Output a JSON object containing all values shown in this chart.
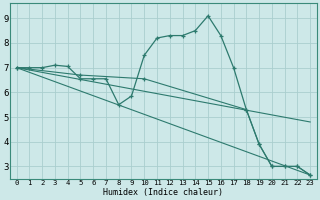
{
  "xlabel": "Humidex (Indice chaleur)",
  "bg_color": "#cde8e8",
  "grid_color": "#aacece",
  "line_color": "#2d7a6e",
  "xlim": [
    -0.5,
    23.5
  ],
  "ylim": [
    2.5,
    9.6
  ],
  "xticks": [
    0,
    1,
    2,
    3,
    4,
    5,
    6,
    7,
    8,
    9,
    10,
    11,
    12,
    13,
    14,
    15,
    16,
    17,
    18,
    19,
    20,
    21,
    22,
    23
  ],
  "yticks": [
    3,
    4,
    5,
    6,
    7,
    8,
    9
  ],
  "lines": [
    {
      "x": [
        0,
        1,
        2,
        3,
        4,
        5,
        6,
        7,
        8,
        9,
        10,
        11,
        12,
        13,
        14,
        15,
        16,
        17,
        18,
        19,
        20,
        21,
        22,
        23
      ],
      "y": [
        7.0,
        7.0,
        7.0,
        7.1,
        7.05,
        6.55,
        6.55,
        6.55,
        5.5,
        5.85,
        7.5,
        8.2,
        8.3,
        8.3,
        8.5,
        9.1,
        8.3,
        7.0,
        5.3,
        3.9,
        3.0,
        3.0,
        3.0,
        2.65
      ],
      "marker": true
    },
    {
      "x": [
        0,
        23
      ],
      "y": [
        7.0,
        2.65
      ],
      "marker": false
    },
    {
      "x": [
        0,
        23
      ],
      "y": [
        7.0,
        4.8
      ],
      "marker": false
    },
    {
      "x": [
        0,
        5,
        10,
        18,
        19,
        20,
        21,
        22,
        23
      ],
      "y": [
        7.0,
        6.7,
        6.55,
        5.3,
        3.9,
        3.0,
        3.0,
        3.0,
        2.65
      ],
      "marker": true
    }
  ]
}
